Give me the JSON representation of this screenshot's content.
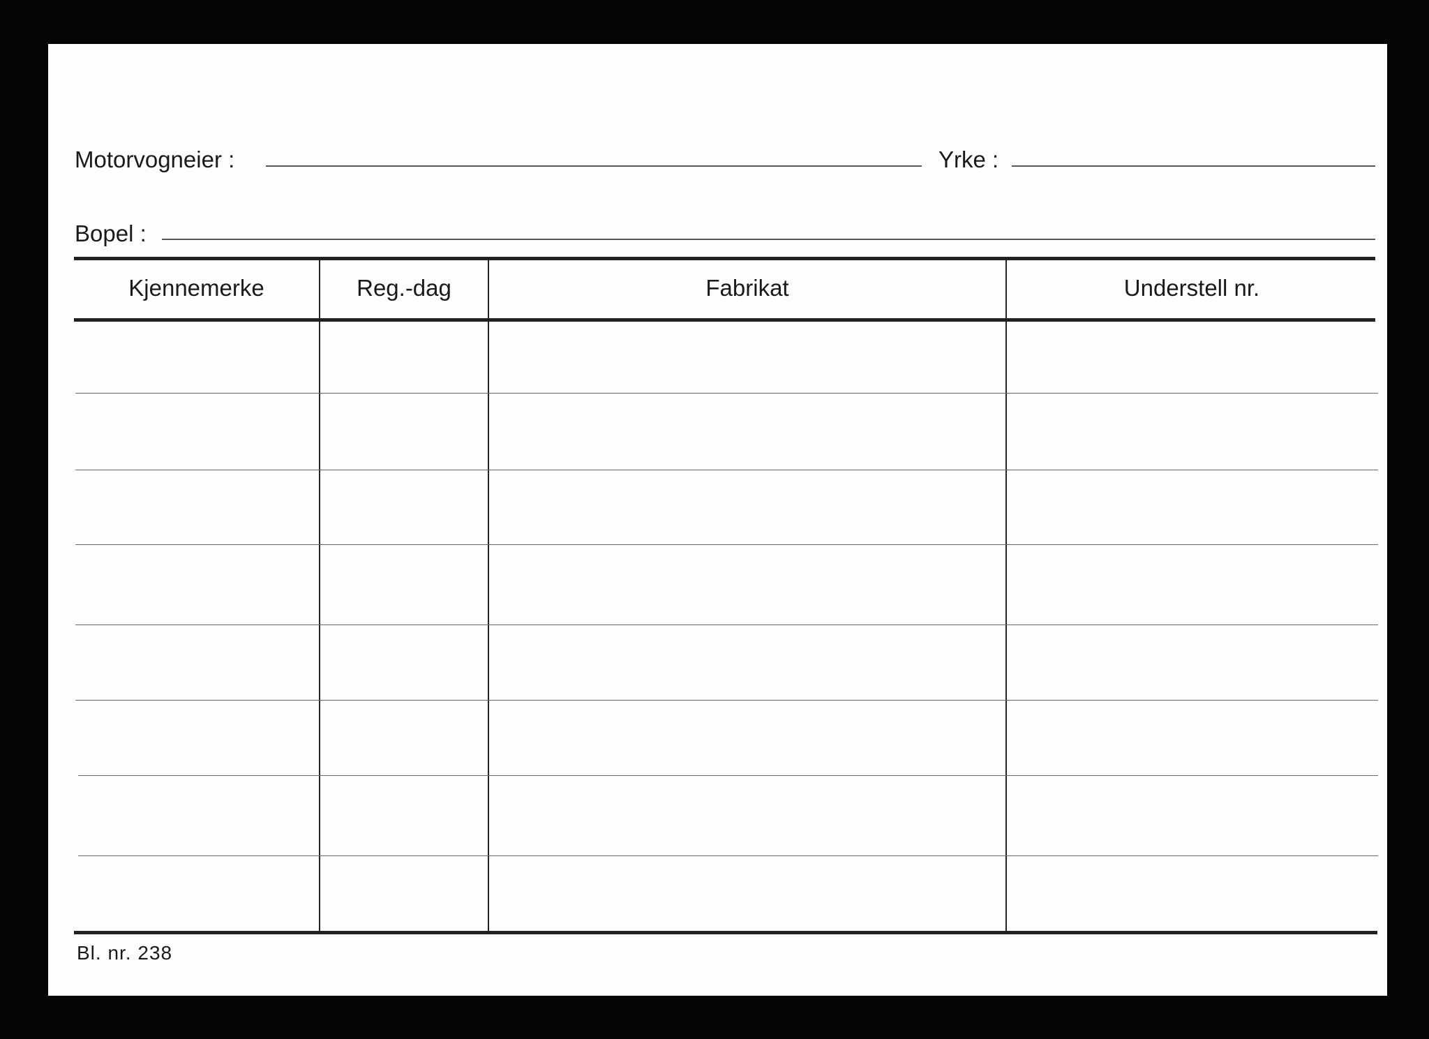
{
  "form": {
    "owner_label": "Motorvogneier :",
    "occupation_label": "Yrke :",
    "address_label": "Bopel :",
    "columns": [
      "Kjennemerke",
      "Reg.-dag",
      "Fabrikat",
      "Understell nr."
    ],
    "form_number": "Bl. nr. 238"
  }
}
